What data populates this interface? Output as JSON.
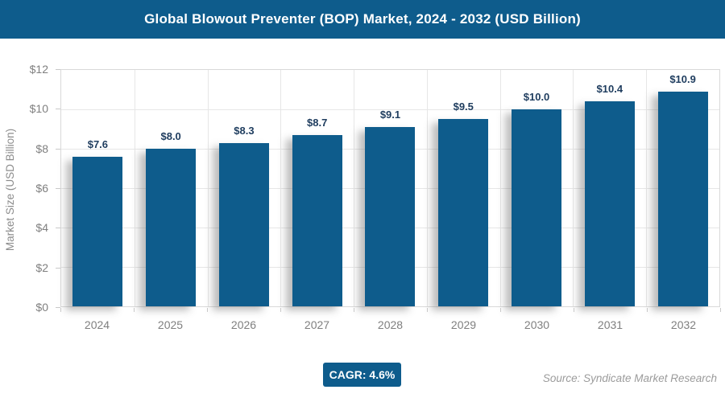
{
  "header": {
    "title": "Global Blowout Preventer (BOP) Market, 2024 - 2032 (USD Billion)"
  },
  "chart_data": {
    "type": "bar",
    "title": "Global Blowout Preventer (BOP) Market, 2024 - 2032 (USD Billion)",
    "categories": [
      "2024",
      "2025",
      "2026",
      "2027",
      "2028",
      "2029",
      "2030",
      "2031",
      "2032"
    ],
    "values": [
      7.6,
      8.0,
      8.3,
      8.7,
      9.1,
      9.5,
      10.0,
      10.4,
      10.9
    ],
    "bar_labels": [
      "$7.6",
      "$8.0",
      "$8.3",
      "$8.7",
      "$9.1",
      "$9.5",
      "$10.0",
      "$10.4",
      "$10.9"
    ],
    "ylabel": "Market Size (USD Billion)",
    "xlabel": "",
    "ylim": [
      0,
      12
    ],
    "ytick_step": 2,
    "ytick_labels": [
      "$0",
      "$2",
      "$4",
      "$6",
      "$8",
      "$10",
      "$12"
    ],
    "grid": true,
    "legend": "none"
  },
  "footer": {
    "cagr": "CAGR: 4.6%",
    "source": "Source: Syndicate Market Research"
  },
  "colors": {
    "brand_blue": "#0E5C8C",
    "bar": "#0E5C8C",
    "bar_label_text": "#1E3C5E",
    "axis_text": "#7f7f7f",
    "grid_line": "#e6e6e6"
  }
}
